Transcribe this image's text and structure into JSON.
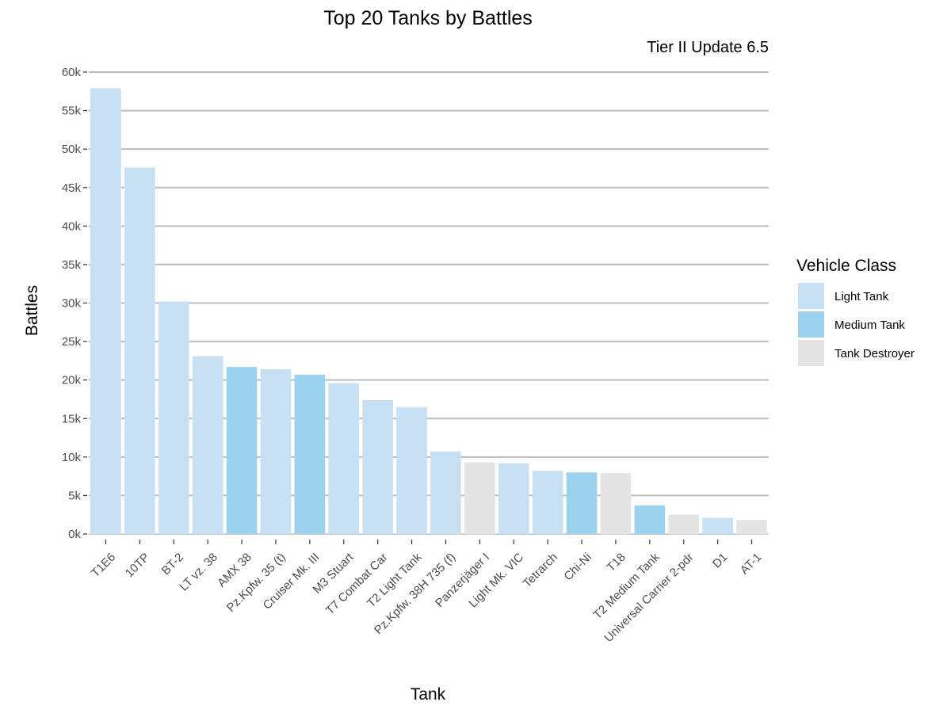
{
  "chart_data": {
    "type": "bar",
    "title": "Top 20 Tanks by Battles",
    "subtitle": "Tier II Update 6.5",
    "xlabel": "Tank",
    "ylabel": "Battles",
    "ylim": [
      0,
      60000
    ],
    "yticks": [
      0,
      5000,
      10000,
      15000,
      20000,
      25000,
      30000,
      35000,
      40000,
      45000,
      50000,
      55000,
      60000
    ],
    "ytick_labels": [
      "0k",
      "5k",
      "10k",
      "15k",
      "20k",
      "25k",
      "30k",
      "35k",
      "40k",
      "45k",
      "50k",
      "55k",
      "60k"
    ],
    "grid": "horizontal",
    "legend": {
      "title": "Vehicle Class",
      "position": "right",
      "entries": [
        {
          "label": "Light Tank",
          "color": "#c8e0f4"
        },
        {
          "label": "Medium Tank",
          "color": "#9dd1f0"
        },
        {
          "label": "Tank Destroyer",
          "color": "#e4e4e4"
        }
      ]
    },
    "categories": [
      "T1E6",
      "10TP",
      "BT-2",
      "LT vz. 38",
      "AMX 38",
      "Pz.Kpfw. 35 (t)",
      "Cruiser Mk. III",
      "M3 Stuart",
      "T7 Combat Car",
      "T2 Light Tank",
      "Pz.Kpfw. 38H 735 (f)",
      "Panzerjäger I",
      "Light Mk. VIC",
      "Tetrarch",
      "Chi-Ni",
      "T18",
      "T2 Medium Tank",
      "Universal Carrier 2-pdr",
      "D1",
      "AT-1"
    ],
    "values": [
      57900,
      47600,
      30200,
      23100,
      21700,
      21400,
      20700,
      19600,
      17400,
      16500,
      10700,
      9300,
      9200,
      8200,
      8000,
      7900,
      3700,
      2500,
      2100,
      1800
    ],
    "classes": [
      "Light Tank",
      "Light Tank",
      "Light Tank",
      "Light Tank",
      "Medium Tank",
      "Light Tank",
      "Medium Tank",
      "Light Tank",
      "Light Tank",
      "Light Tank",
      "Light Tank",
      "Tank Destroyer",
      "Light Tank",
      "Light Tank",
      "Medium Tank",
      "Tank Destroyer",
      "Medium Tank",
      "Tank Destroyer",
      "Light Tank",
      "Tank Destroyer"
    ]
  }
}
